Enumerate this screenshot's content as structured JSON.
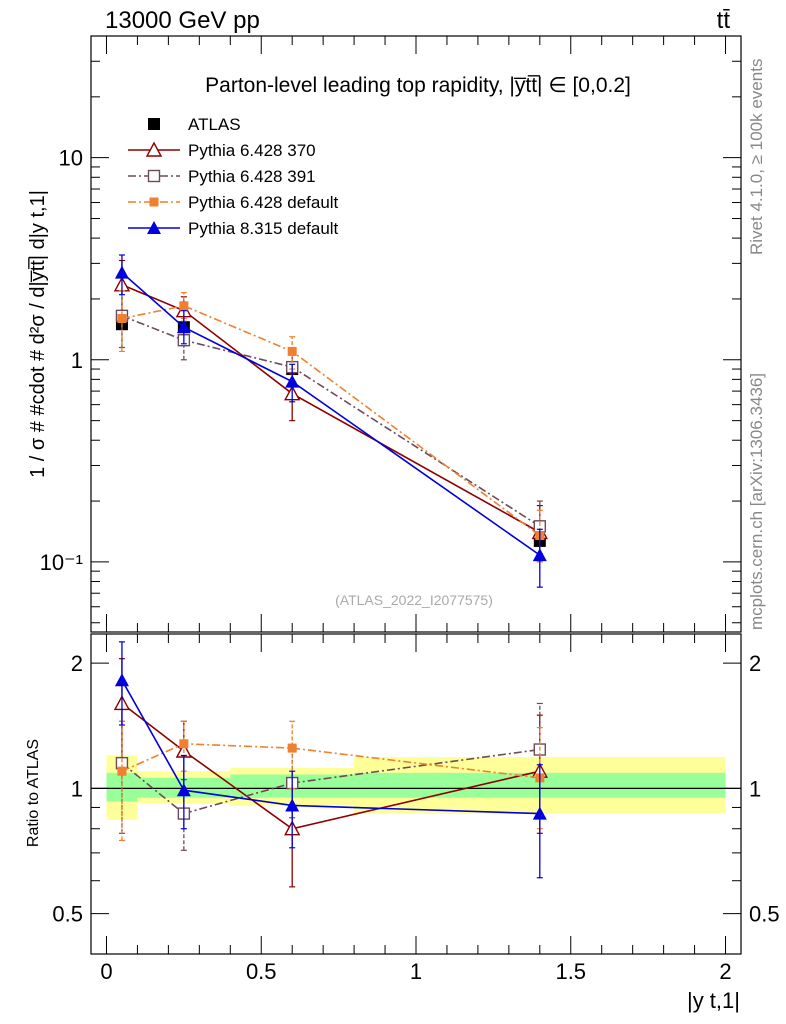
{
  "header": {
    "energy_label": "13000 GeV pp",
    "process_label": "tt̄"
  },
  "side_text": {
    "rivet": "Rivet 4.1.0, ≥ 100k events",
    "mcplots": "mcplots.cern.ch [arXiv:1306.3436]"
  },
  "colors": {
    "atlas": "#000000",
    "p370": "#8b0000",
    "p391": "#6e4a5a",
    "p6def": "#f07f30",
    "p8def": "#0000dd",
    "band_inner": "#99ff99",
    "band_outer": "#ffff99"
  },
  "chart_data": [
    {
      "type": "line",
      "panel": "main",
      "title": "Parton-level leading top rapidity, |y̅tt̅| ∈ [0,0.2]",
      "ylabel": "1 / σ # #cdot # d²σ / d|y̅tt̅| d|y t,1|",
      "yscale": "log",
      "ylim": [
        0.045,
        40
      ],
      "xlim": [
        -0.05,
        2.05
      ],
      "y_tick_labels": [
        "10⁻¹",
        "1",
        "10"
      ],
      "watermark": "(ATLAS_2022_I2077575)",
      "legend_position": "top-left",
      "series": [
        {
          "name": "ATLAS",
          "key": "atlas",
          "x": [
            0.05,
            0.25,
            0.6,
            1.4
          ],
          "y": [
            1.5,
            1.45,
            0.9,
            0.127
          ],
          "err": [
            [
              1.5,
              1.5
            ],
            [
              1.45,
              1.45
            ],
            [
              0.9,
              0.9
            ],
            [
              0.127,
              0.127
            ]
          ],
          "xerr": [
            0.05,
            0.05,
            0.1,
            0.2
          ]
        },
        {
          "name": "Pythia 6.428 370",
          "key": "p370",
          "x": [
            0.05,
            0.25,
            0.6,
            1.4
          ],
          "y": [
            2.35,
            1.75,
            0.68,
            0.14
          ],
          "err": [
            [
              1.7,
              3.1
            ],
            [
              1.45,
              2.05
            ],
            [
              0.5,
              0.85
            ],
            [
              0.1,
              0.19
            ]
          ]
        },
        {
          "name": "Pythia 6.428 391",
          "key": "p391",
          "x": [
            0.05,
            0.25,
            0.6,
            1.4
          ],
          "y": [
            1.65,
            1.25,
            0.92,
            0.15
          ],
          "err": [
            [
              1.15,
              2.2
            ],
            [
              1.0,
              1.55
            ],
            [
              0.75,
              1.1
            ],
            [
              0.11,
              0.2
            ]
          ]
        },
        {
          "name": "Pythia 6.428 default",
          "key": "p6def",
          "x": [
            0.05,
            0.25,
            0.6,
            1.4
          ],
          "y": [
            1.6,
            1.85,
            1.1,
            0.135
          ],
          "err": [
            [
              1.1,
              2.2
            ],
            [
              1.6,
              2.15
            ],
            [
              0.9,
              1.3
            ],
            [
              0.1,
              0.18
            ]
          ]
        },
        {
          "name": "Pythia 8.315 default",
          "key": "p8def",
          "x": [
            0.05,
            0.25,
            0.6,
            1.4
          ],
          "y": [
            2.7,
            1.45,
            0.78,
            0.108
          ],
          "err": [
            [
              2.1,
              3.3
            ],
            [
              1.2,
              1.75
            ],
            [
              0.62,
              0.95
            ],
            [
              0.075,
              0.145
            ]
          ]
        }
      ]
    },
    {
      "type": "line",
      "panel": "ratio",
      "ylabel": "Ratio to ATLAS",
      "xlabel": "|y t,1|",
      "yscale": "log",
      "ylim": [
        0.4,
        2.35
      ],
      "xlim": [
        -0.05,
        2.05
      ],
      "y_tick_labels": [
        "0.5",
        "1",
        "2"
      ],
      "x_tick_labels": [
        "0",
        "0.5",
        "1",
        "1.5",
        "2"
      ],
      "band": {
        "edges": [
          0.0,
          0.1,
          0.4,
          0.8,
          2.0
        ],
        "inner": [
          [
            0.93,
            1.09
          ],
          [
            0.95,
            1.06
          ],
          [
            0.95,
            1.08
          ],
          [
            0.95,
            1.09
          ]
        ],
        "outer": [
          [
            0.84,
            1.2
          ],
          [
            0.92,
            1.1
          ],
          [
            0.91,
            1.12
          ],
          [
            0.87,
            1.19
          ]
        ]
      },
      "series": [
        {
          "name": "Pythia 6.428 370",
          "key": "p370",
          "x": [
            0.05,
            0.25,
            0.6,
            1.4
          ],
          "y": [
            1.6,
            1.23,
            0.8,
            1.1
          ],
          "err": [
            [
              1.18,
              2.05
            ],
            [
              1.0,
              1.45
            ],
            [
              0.58,
              1.0
            ],
            [
              0.78,
              1.5
            ]
          ]
        },
        {
          "name": "Pythia 6.428 391",
          "key": "p391",
          "x": [
            0.05,
            0.25,
            0.6,
            1.4
          ],
          "y": [
            1.15,
            0.87,
            1.03,
            1.24
          ],
          "err": [
            [
              0.78,
              1.45
            ],
            [
              0.71,
              1.05
            ],
            [
              0.85,
              1.24
            ],
            [
              0.85,
              1.6
            ]
          ]
        },
        {
          "name": "Pythia 6.428 default",
          "key": "p6def",
          "x": [
            0.05,
            0.25,
            0.6,
            1.4
          ],
          "y": [
            1.1,
            1.28,
            1.25,
            1.06
          ],
          "err": [
            [
              0.75,
              1.45
            ],
            [
              1.1,
              1.45
            ],
            [
              1.0,
              1.45
            ],
            [
              0.8,
              1.4
            ]
          ]
        },
        {
          "name": "Pythia 8.315 default",
          "key": "p8def",
          "x": [
            0.05,
            0.25,
            0.6,
            1.4
          ],
          "y": [
            1.82,
            0.99,
            0.91,
            0.87
          ],
          "err": [
            [
              1.42,
              2.25
            ],
            [
              0.8,
              1.2
            ],
            [
              0.72,
              1.1
            ],
            [
              0.61,
              1.14
            ]
          ]
        }
      ]
    }
  ]
}
